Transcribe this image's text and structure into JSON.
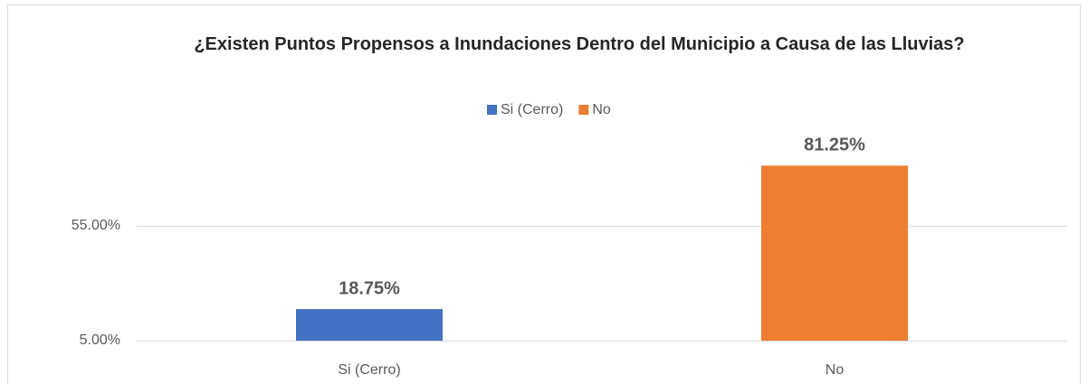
{
  "chart_data": {
    "type": "bar",
    "title": "¿Existen Puntos Propensos a Inundaciones Dentro del Municipio a Causa de las Lluvias?",
    "categories": [
      "Si (Cerro)",
      "No"
    ],
    "values": [
      18.75,
      81.25
    ],
    "value_labels": [
      "18.75%",
      "81.25%"
    ],
    "colors": [
      "#4472c4",
      "#ed7d31"
    ],
    "ylim": [
      5,
      105
    ],
    "yticks": [
      {
        "value": 5,
        "label": "5.00%"
      },
      {
        "value": 55,
        "label": "55.00%"
      }
    ],
    "grid": true,
    "legend": "top"
  }
}
